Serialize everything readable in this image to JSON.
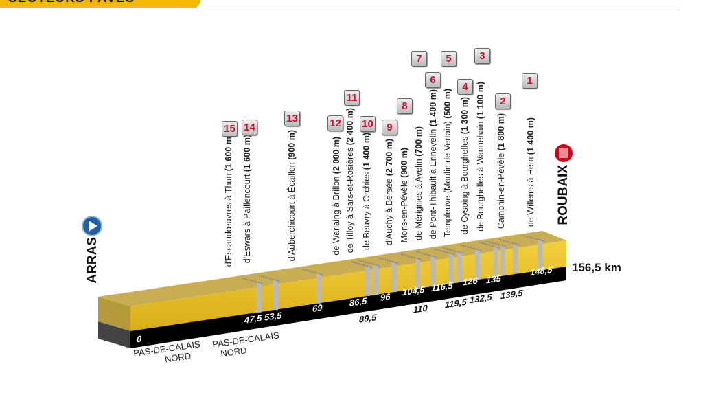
{
  "header": {
    "title": "SECTEURS PAVÉS"
  },
  "start": {
    "city": "ARRAS",
    "km": "0"
  },
  "finish": {
    "city": "ROUBAIX",
    "total": "156,5 km"
  },
  "departments": [
    {
      "top": "PAS-DE-CALAIS",
      "bottom": "NORD"
    },
    {
      "top": "PAS-DE-CALAIS",
      "bottom": "NORD"
    }
  ],
  "sectors": [
    {
      "num": "15",
      "name": "d'Escaudœuvres à Thun",
      "length": "(1 600 m)",
      "km": "47,5"
    },
    {
      "num": "14",
      "name": "d'Eswars à Paillencourt",
      "length": "(1 600 m)",
      "km": "53,5"
    },
    {
      "num": "13",
      "name": "d'Auberchicourt à Écaillon",
      "length": "(900 m)",
      "km": "69"
    },
    {
      "num": "12",
      "name": "de Warlaing à Brillon",
      "length": "(2 000 m)",
      "km": "86,5"
    },
    {
      "num": "11",
      "name": "de Tilloy à Sars-et-Rosières",
      "length": "(2 400 m)",
      "km": "89,5"
    },
    {
      "num": "10",
      "name": "de Beuvry à Orchies",
      "length": "(1 400 m)",
      "km": "96"
    },
    {
      "num": "9",
      "name": "d'Auchy à Bersée",
      "length": "(2 700 m)",
      "km": "104,5"
    },
    {
      "num": "8",
      "name": "Mons-en-Pévèle",
      "length": "(900 m)",
      "km": "110"
    },
    {
      "num": "7",
      "name": "de Mérignies à Avelin",
      "length": "(700 m)",
      "km": "116,5"
    },
    {
      "num": "6",
      "name": "de Pont-Thibault à Ennevelin",
      "length": "(1 400 m)",
      "km": "119,5"
    },
    {
      "num": "5",
      "name": "Templeuve (Moulin de Vertain)",
      "length": "(500 m)",
      "km": "126"
    },
    {
      "num": "4",
      "name": "de Cysoing à Bourghelles",
      "length": "(1 300 m)",
      "km": "132,5"
    },
    {
      "num": "3",
      "name": "de Bourghelles à Wannehain",
      "length": "(1 100 m)",
      "km": "135"
    },
    {
      "num": "2",
      "name": "Camphin-en-Pévèle",
      "length": "(1 800 m)",
      "km": "139,5"
    },
    {
      "num": "1",
      "name": "de Willems à Hem",
      "length": "(1 400 m)",
      "km": "148,5"
    }
  ],
  "colors": {
    "accent": "#f5b800",
    "terrain": "#e8c232",
    "road": "#000000",
    "badge_text": "#c8102e",
    "start_icon": "#1f5fa8",
    "finish_icon": "#d0021b"
  }
}
